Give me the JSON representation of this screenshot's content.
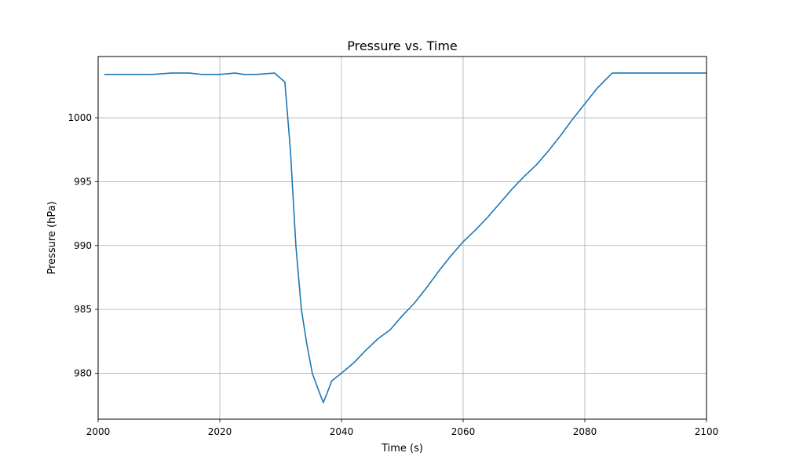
{
  "chart_data": {
    "type": "line",
    "title": "Pressure vs. Time",
    "xlabel": "Time (s)",
    "ylabel": "Pressure (hPa)",
    "xlim": [
      2000,
      2100
    ],
    "ylim": [
      976.4,
      1004.8
    ],
    "grid": true,
    "x_ticks": [
      2000,
      2020,
      2040,
      2060,
      2080,
      2100
    ],
    "y_ticks": [
      980,
      985,
      990,
      995,
      1000
    ],
    "series": [
      {
        "color": "#1f77b4",
        "x": [
          2001,
          2005,
          2007,
          2009,
          2012,
          2015,
          2017,
          2020,
          2022.5,
          2024,
          2026,
          2029,
          2030.7,
          2031.6,
          2032.5,
          2033.4,
          2034.3,
          2035.2,
          2036.2,
          2037,
          2037.6,
          2038.4,
          2040,
          2042,
          2044,
          2046,
          2048,
          2050,
          2052,
          2054,
          2056,
          2058,
          2060,
          2062,
          2064,
          2066,
          2068,
          2070,
          2072,
          2074,
          2076,
          2078,
          2080,
          2082,
          2084.5,
          2086,
          2088,
          2090,
          2092,
          2094,
          2096,
          2098,
          2100
        ],
        "values": [
          1003.4,
          1003.4,
          1003.4,
          1003.4,
          1003.5,
          1003.5,
          1003.4,
          1003.4,
          1003.5,
          1003.4,
          1003.4,
          1003.5,
          1002.8,
          997.5,
          990.0,
          985.0,
          982.3,
          980.0,
          978.7,
          977.7,
          978.4,
          979.4,
          980.0,
          980.8,
          981.8,
          982.7,
          983.4,
          984.5,
          985.5,
          986.7,
          988.0,
          989.2,
          990.3,
          991.2,
          992.2,
          993.3,
          994.4,
          995.4,
          996.3,
          997.4,
          998.6,
          999.9,
          1001.1,
          1002.3,
          1003.5,
          1003.5,
          1003.5,
          1003.5,
          1003.5,
          1003.5,
          1003.5,
          1003.5,
          1003.5
        ]
      }
    ]
  }
}
